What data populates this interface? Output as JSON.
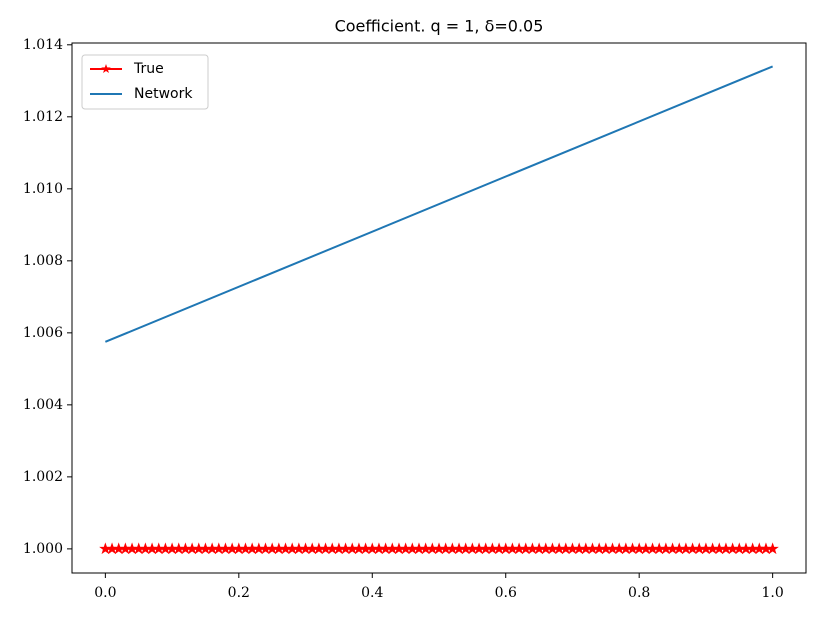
{
  "chart_data": {
    "type": "line",
    "title": "Coefficient. q = 1, δ=0.05",
    "xlim": [
      -0.05,
      1.05
    ],
    "ylim": [
      0.99933,
      1.01405
    ],
    "xticks": [
      {
        "value": 0,
        "label": "0.0"
      },
      0.2,
      0.4,
      0.6,
      0.8,
      {
        "value": 1,
        "label": "1.0"
      }
    ],
    "yticks": [
      {
        "value": 1,
        "label": "1.000"
      },
      {
        "value": 1.002,
        "label": "1.002"
      },
      {
        "value": 1.004,
        "label": "1.004"
      },
      {
        "value": 1.006,
        "label": "1.006"
      },
      {
        "value": 1.008,
        "label": "1.008"
      },
      {
        "value": 1.01,
        "label": "1.010"
      },
      {
        "value": 1.012,
        "label": "1.012"
      },
      {
        "value": 1.014,
        "label": "1.014"
      }
    ],
    "legend": "upper left",
    "series": [
      {
        "name": "True",
        "color": "#ff0000",
        "marker": "star",
        "x": [
          0,
          0.01,
          0.02,
          0.03,
          0.04,
          0.05,
          0.06,
          0.07,
          0.08,
          0.09,
          0.1,
          0.11,
          0.12,
          0.13,
          0.14,
          0.15,
          0.16,
          0.17,
          0.18,
          0.19,
          0.2,
          0.21,
          0.22,
          0.23,
          0.24,
          0.25,
          0.26,
          0.27,
          0.28,
          0.29,
          0.3,
          0.31,
          0.32,
          0.33,
          0.34,
          0.35,
          0.36,
          0.37,
          0.38,
          0.39,
          0.4,
          0.41,
          0.42,
          0.43,
          0.44,
          0.45,
          0.46,
          0.47,
          0.48,
          0.49,
          0.5,
          0.51,
          0.52,
          0.53,
          0.54,
          0.55,
          0.56,
          0.57,
          0.58,
          0.59,
          0.6,
          0.61,
          0.62,
          0.63,
          0.64,
          0.65,
          0.66,
          0.67,
          0.68,
          0.69,
          0.7,
          0.71,
          0.72,
          0.73,
          0.74,
          0.75,
          0.76,
          0.77,
          0.78,
          0.79,
          0.8,
          0.81,
          0.82,
          0.83,
          0.84,
          0.85,
          0.86,
          0.87,
          0.88,
          0.89,
          0.9,
          0.91,
          0.92,
          0.93,
          0.94,
          0.95,
          0.96,
          0.97,
          0.98,
          0.99,
          1
        ],
        "values": [
          1,
          1,
          1,
          1,
          1,
          1,
          1,
          1,
          1,
          1,
          1,
          1,
          1,
          1,
          1,
          1,
          1,
          1,
          1,
          1,
          1,
          1,
          1,
          1,
          1,
          1,
          1,
          1,
          1,
          1,
          1,
          1,
          1,
          1,
          1,
          1,
          1,
          1,
          1,
          1,
          1,
          1,
          1,
          1,
          1,
          1,
          1,
          1,
          1,
          1,
          1,
          1,
          1,
          1,
          1,
          1,
          1,
          1,
          1,
          1,
          1,
          1,
          1,
          1,
          1,
          1,
          1,
          1,
          1,
          1,
          1,
          1,
          1,
          1,
          1,
          1,
          1,
          1,
          1,
          1,
          1,
          1,
          1,
          1,
          1,
          1,
          1,
          1,
          1,
          1,
          1,
          1,
          1,
          1,
          1,
          1,
          1,
          1,
          1,
          1,
          1
        ]
      },
      {
        "name": "Network",
        "color": "#1f77b4",
        "x": [
          0,
          1
        ],
        "values": [
          1.00575,
          1.0134
        ]
      }
    ]
  }
}
